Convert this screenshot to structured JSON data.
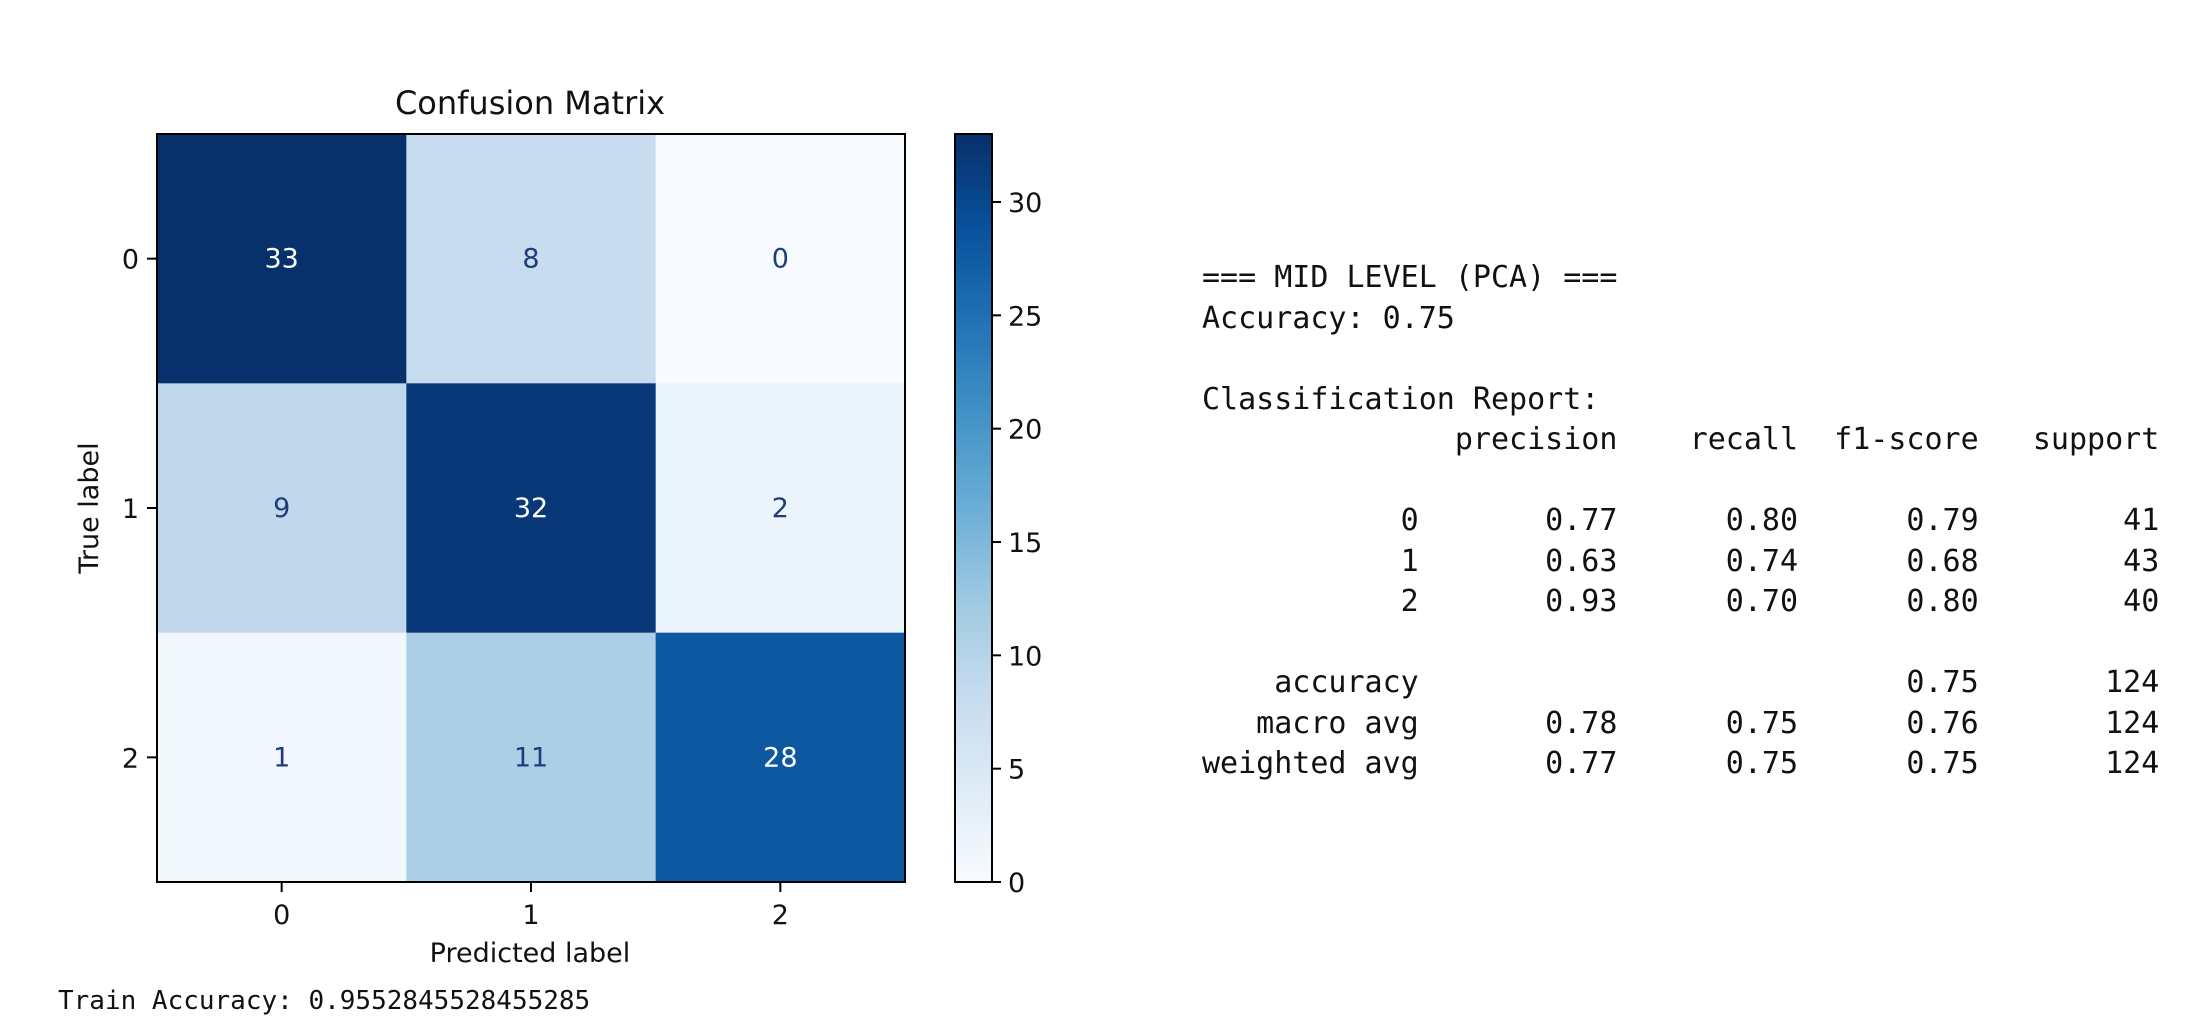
{
  "chart_data": {
    "type": "heatmap",
    "title": "Confusion Matrix",
    "xlabel": "Predicted label",
    "ylabel": "True label",
    "x_categories": [
      "0",
      "1",
      "2"
    ],
    "y_categories": [
      "0",
      "1",
      "2"
    ],
    "matrix": [
      [
        33,
        8,
        0
      ],
      [
        9,
        32,
        2
      ],
      [
        1,
        11,
        28
      ]
    ],
    "colormap": "Blues",
    "colorbar": {
      "min": 0,
      "max": 33,
      "ticks": [
        0,
        5,
        10,
        15,
        20,
        25,
        30
      ]
    },
    "grid": false
  },
  "report": {
    "lines": [
      "=== MID LEVEL (PCA) ===",
      "Accuracy: 0.75",
      "",
      "Classification Report:",
      "              precision    recall  f1-score   support",
      "",
      "           0       0.77      0.80      0.79        41",
      "           1       0.63      0.74      0.68        43",
      "           2       0.93      0.70      0.80        40",
      "",
      "    accuracy                           0.75       124",
      "   macro avg       0.78      0.75      0.76       124",
      "weighted avg       0.77      0.75      0.75       124"
    ]
  },
  "train_accuracy": "Train Accuracy: 0.9552845528455285"
}
